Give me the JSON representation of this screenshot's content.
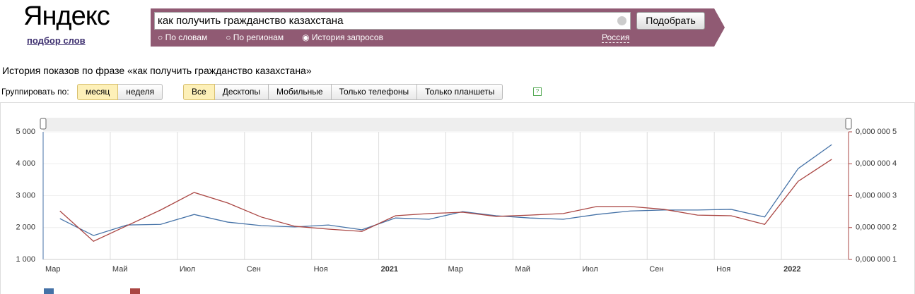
{
  "header": {
    "logo": "Яндекс",
    "subtitle": "подбор слов"
  },
  "search": {
    "query": "как получить гражданство казахстана",
    "button": "Подобрать",
    "options": [
      "По словам",
      "По регионам",
      "История запросов"
    ],
    "region": "Россия"
  },
  "heading": "История показов по фразе «как получить гражданство казахстана»",
  "group": {
    "label": "Группировать по:",
    "options": [
      "месяц",
      "неделя"
    ]
  },
  "devices": [
    "Все",
    "Десктопы",
    "Мобильные",
    "Только телефоны",
    "Только планшеты"
  ],
  "chart_data": {
    "type": "line",
    "categories": [
      "Мар",
      null,
      "Май",
      null,
      "Июл",
      null,
      "Сен",
      null,
      "Ноя",
      null,
      "2021",
      null,
      "Мар",
      null,
      "Май",
      null,
      "Июл",
      null,
      "Сен",
      null,
      "Ноя",
      null,
      "2022",
      null
    ],
    "series": [
      {
        "color": "#4572a7",
        "values": [
          2280,
          1750,
          2080,
          2100,
          2410,
          2170,
          2060,
          2020,
          2080,
          1930,
          2300,
          2260,
          2500,
          2370,
          2300,
          2260,
          2410,
          2520,
          2550,
          2550,
          2570,
          2330,
          3850,
          4600
        ]
      },
      {
        "color": "#aa4643",
        "axis": "y2",
        "values": [
          2.52e-07,
          1.57e-07,
          2.06e-07,
          2.55e-07,
          3.1e-07,
          2.77e-07,
          2.33e-07,
          2.04e-07,
          1.95e-07,
          1.88e-07,
          2.37e-07,
          2.44e-07,
          2.48e-07,
          2.35e-07,
          2.39e-07,
          2.44e-07,
          2.66e-07,
          2.66e-07,
          2.57e-07,
          2.39e-07,
          2.37e-07,
          2.1e-07,
          3.45e-07,
          4.14e-07
        ]
      }
    ],
    "ylim": [
      1000,
      5000
    ],
    "yticks": [
      {
        "value": 1000,
        "label": "1 000"
      },
      {
        "value": 2000,
        "label": "2 000"
      },
      {
        "value": 3000,
        "label": "3 000"
      },
      {
        "value": 4000,
        "label": "4 000"
      },
      {
        "value": 5000,
        "label": "5 000"
      }
    ],
    "y2lim": [
      1e-07,
      5e-07
    ],
    "y2ticks": [
      {
        "value": 1e-07,
        "label": "0,000 000 1"
      },
      {
        "value": 2e-07,
        "label": "0,000 000 2"
      },
      {
        "value": 3e-07,
        "label": "0,000 000 3"
      },
      {
        "value": 4e-07,
        "label": "0,000 000 4"
      },
      {
        "value": 5e-07,
        "label": "0,000 000 5"
      }
    ],
    "grid": true
  }
}
